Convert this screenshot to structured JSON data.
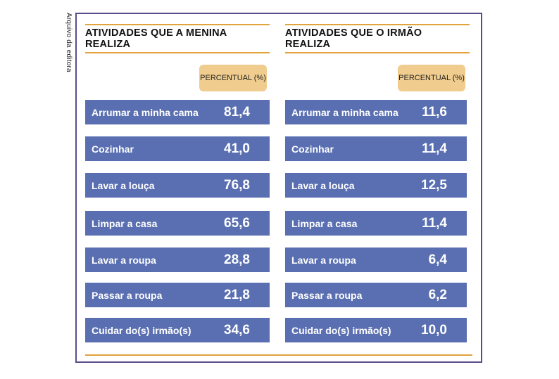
{
  "credit": "Arquivo da editora",
  "left": {
    "title": "ATIVIDADES QUE A MENINA REALIZA",
    "header": "PERCENTUAL (%)",
    "rows": [
      {
        "label": "Arrumar a minha cama",
        "value": "81,4"
      },
      {
        "label": "Cozinhar",
        "value": "41,0"
      },
      {
        "label": "Lavar a louça",
        "value": "76,8"
      },
      {
        "label": "Limpar a casa",
        "value": "65,6"
      },
      {
        "label": "Lavar a roupa",
        "value": "28,8"
      },
      {
        "label": "Passar a roupa",
        "value": "21,8"
      },
      {
        "label": "Cuidar do(s) irmão(s)",
        "value": "34,6"
      }
    ]
  },
  "right": {
    "title": "ATIVIDADES QUE O IRMÃO REALIZA",
    "header": "PERCENTUAL (%)",
    "rows": [
      {
        "label": "Arrumar a minha cama",
        "value": "11,6"
      },
      {
        "label": "Cozinhar",
        "value": "11,4"
      },
      {
        "label": "Lavar a louça",
        "value": "12,5"
      },
      {
        "label": "Limpar a casa",
        "value": "11,4"
      },
      {
        "label": "Lavar a roupa",
        "value": "6,4"
      },
      {
        "label": "Passar a roupa",
        "value": "6,2"
      },
      {
        "label": "Cuidar do(s) irmão(s)",
        "value": "10,0"
      }
    ]
  },
  "colors": {
    "frame": "#5b4b8a",
    "rule": "#e2a33a",
    "header_badge": "#f0cc8e",
    "row": "#5a6fb1"
  }
}
